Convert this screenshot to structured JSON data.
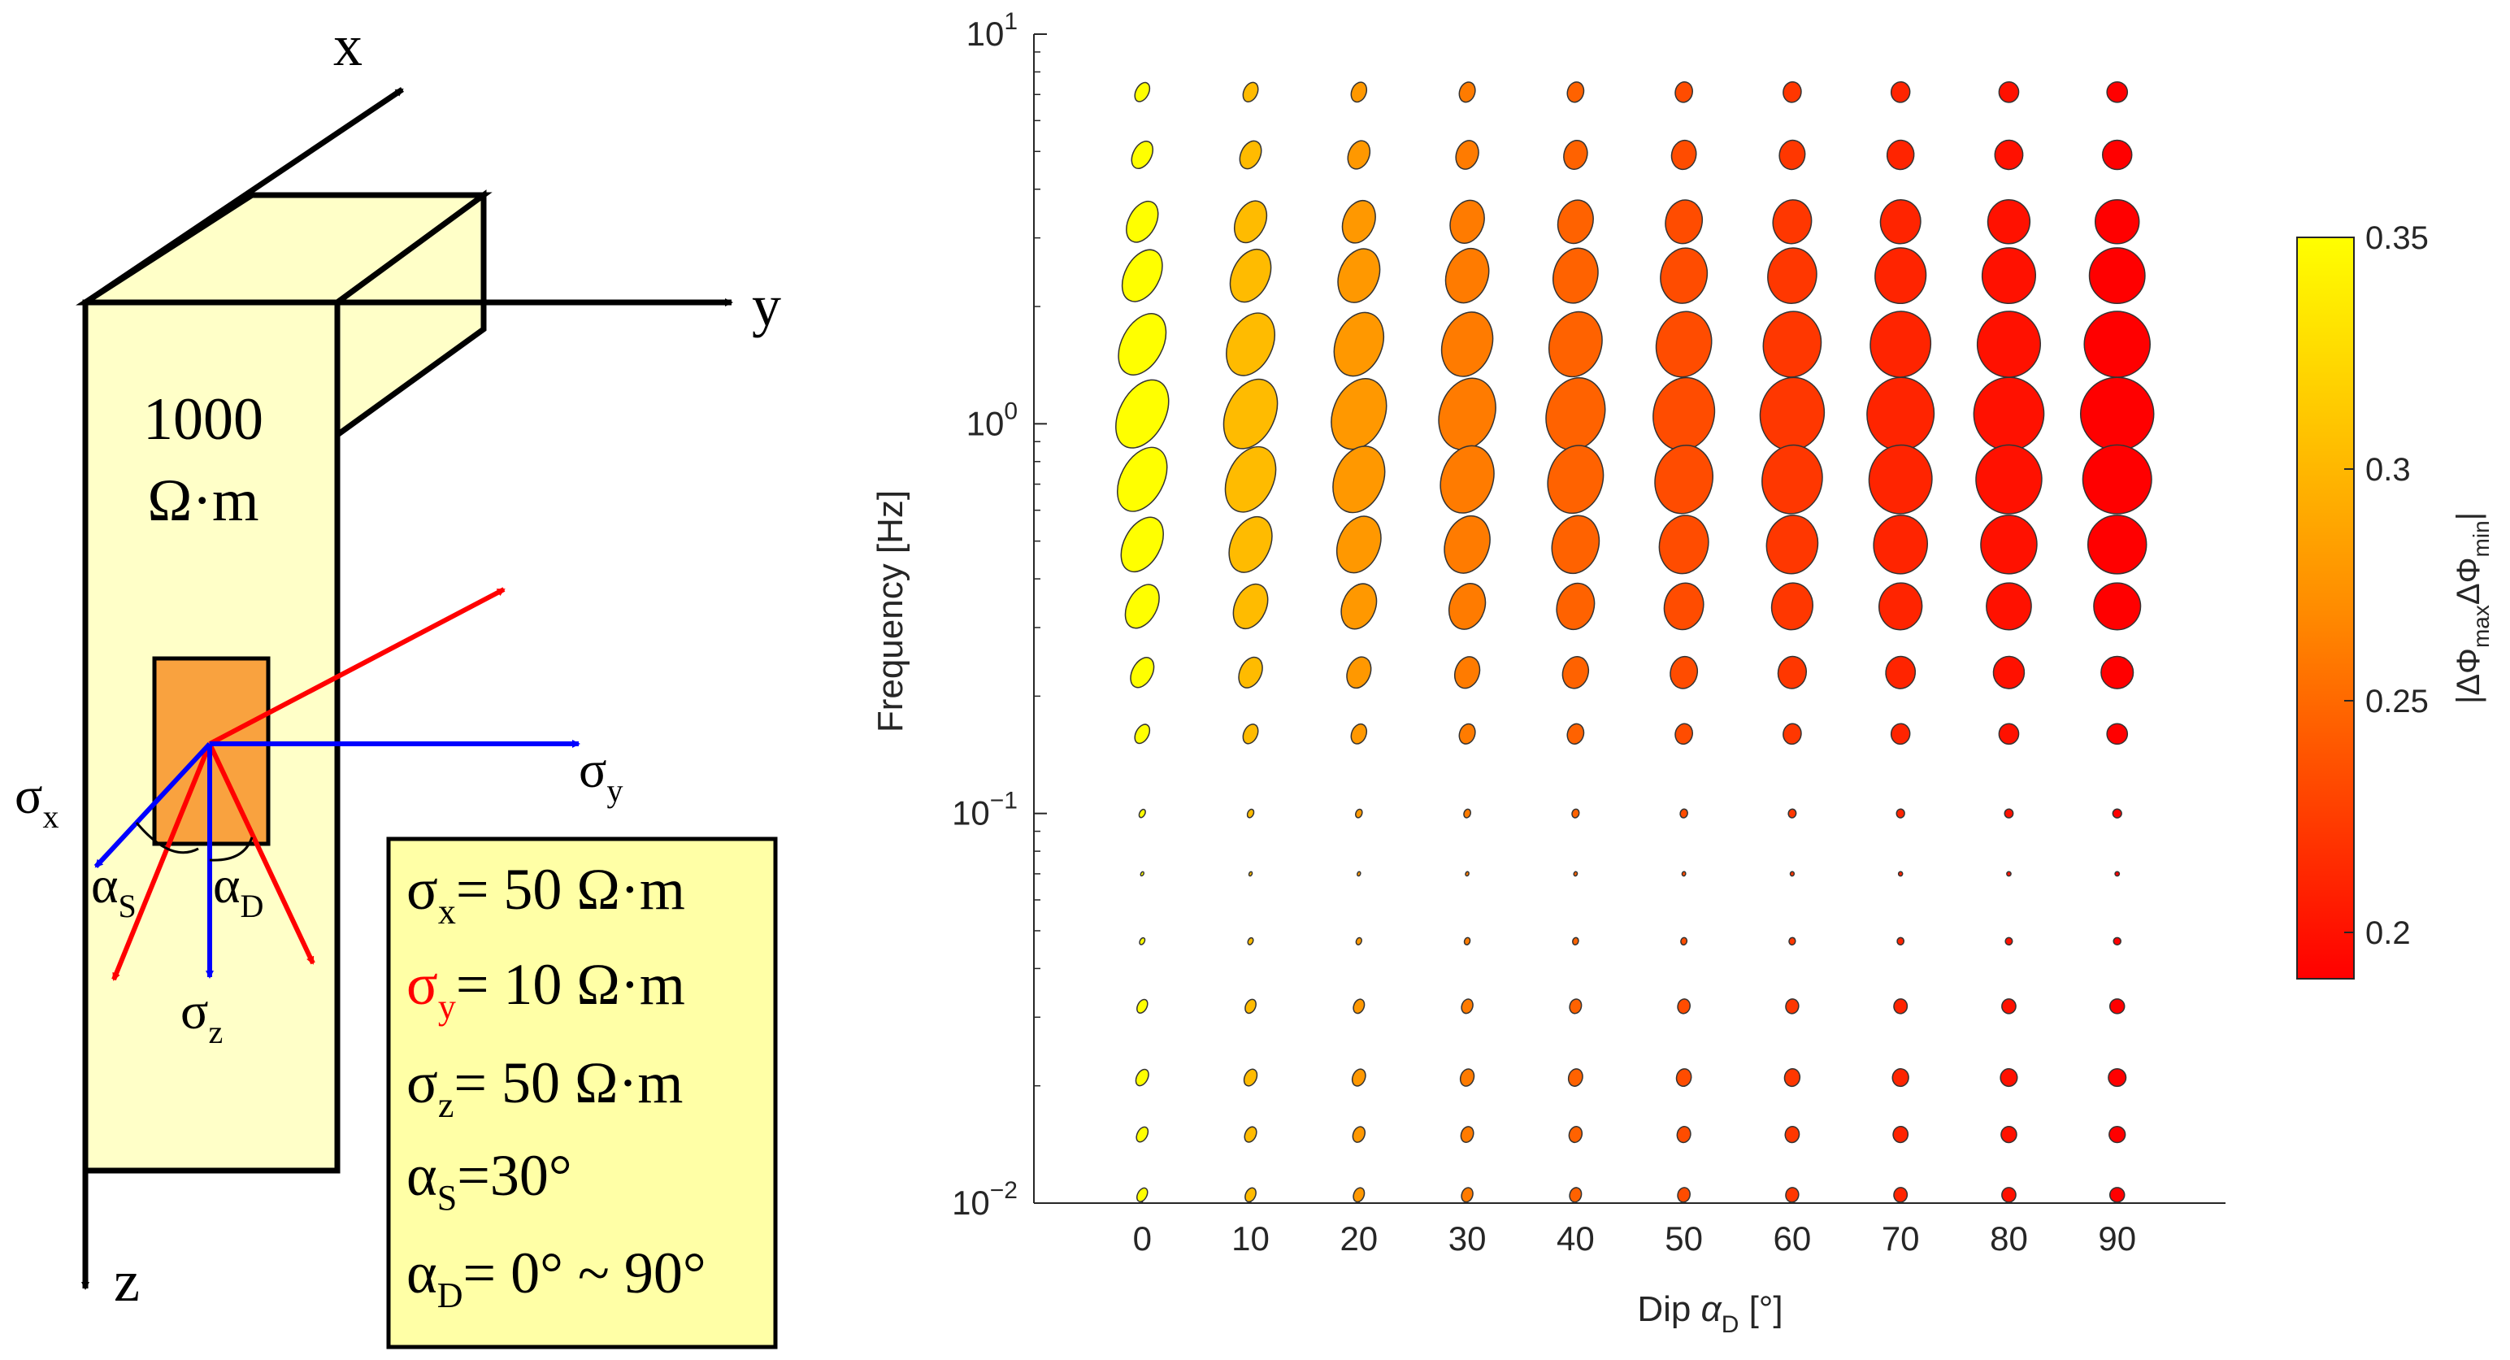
{
  "diagram": {
    "axis_x": "x",
    "axis_y": "y",
    "axis_z": "z",
    "block_label_line1": "1000",
    "block_label_line2": "Ω·m",
    "sigma_x_label": "σ",
    "sigma_x_sub": "x",
    "sigma_y_label": "σ",
    "sigma_y_sub": "y",
    "sigma_z_label": "σ",
    "sigma_z_sub": "z",
    "alpha_s_label": "α",
    "alpha_s_sub": "S",
    "alpha_d_label": "α",
    "alpha_d_sub": "D",
    "colors": {
      "block_fill": "#ffffc8",
      "anomaly_fill": "#f9a23f",
      "blue": "#0000ff",
      "red": "#ff0000"
    },
    "params": {
      "sx_sym": "σ",
      "sx_sub": "x",
      "sx_val": "= 50 Ω·m",
      "sy_sym": "σ",
      "sy_sub": "y",
      "sy_val": "= 10 Ω·m",
      "sz_sym": "σ",
      "sz_sub": "z",
      "sz_val": "= 50 Ω·m",
      "as_sym": "α",
      "as_sub": "S",
      "as_val": "=30°",
      "ad_sym": "α",
      "ad_sub": "D",
      "ad_val": "= 0° ~ 90°"
    }
  },
  "chart_data": {
    "type": "scatter",
    "title": "",
    "xlabel_pre": "Dip ",
    "xlabel_sym": "α",
    "xlabel_sub": "D",
    "xlabel_post": " [°]",
    "ylabel": "Frequency [Hz]",
    "yscale": "log",
    "xlim": [
      -10,
      100
    ],
    "ylim": [
      0.01,
      10
    ],
    "x_ticks": [
      "0",
      "10",
      "20",
      "30",
      "40",
      "50",
      "60",
      "70",
      "80",
      "90"
    ],
    "y_ticks": [
      {
        "base": "10",
        "exp": "1"
      },
      {
        "base": "10",
        "exp": "0"
      },
      {
        "base": "10",
        "exp": "−1"
      },
      {
        "base": "10",
        "exp": "−2"
      }
    ],
    "dips": [
      0,
      10,
      20,
      30,
      40,
      50,
      60,
      70,
      80,
      90
    ],
    "frequencies": [
      7.1,
      4.9,
      3.3,
      2.4,
      1.6,
      1.06,
      0.72,
      0.49,
      0.34,
      0.23,
      0.16,
      0.1,
      0.07,
      0.047,
      0.032,
      0.021,
      0.015,
      0.0105
    ],
    "ellipse_major": [
      0.14,
      0.2,
      0.3,
      0.38,
      0.45,
      0.5,
      0.47,
      0.4,
      0.32,
      0.22,
      0.14,
      0.06,
      0.03,
      0.05,
      0.1,
      0.12,
      0.11,
      0.1
    ],
    "colorbar": {
      "label_pre": "|ΔΦ",
      "label_sub1": "max",
      "label_mid": "ΔΦ",
      "label_sub2": "min",
      "label_post": "|",
      "range": [
        0.19,
        0.35
      ],
      "ticks": [
        "0.35",
        "0.3",
        "0.25",
        "0.2"
      ],
      "colors": [
        "#ff0000",
        "#ff8c00",
        "#ffff00"
      ]
    }
  }
}
